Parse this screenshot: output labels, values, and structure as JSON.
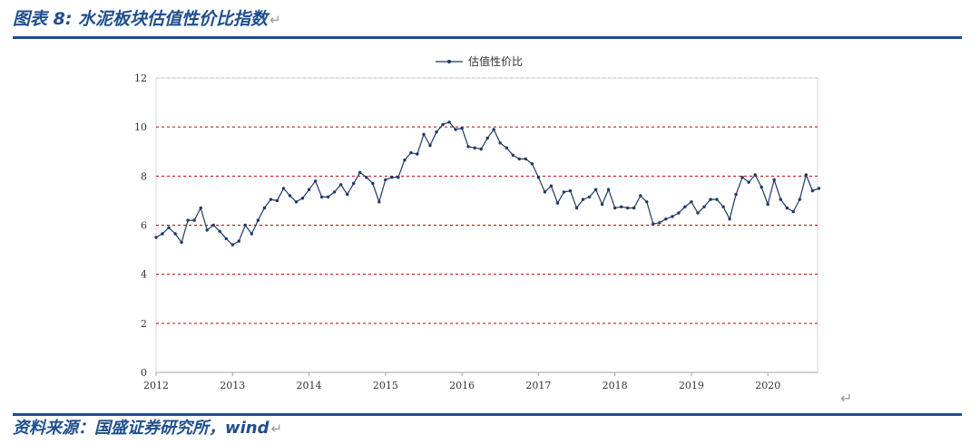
{
  "figure": {
    "title": "图表 8:  水泥板块估值性价比指数",
    "source": "资料来源：国盛证券研究所，wind",
    "return_mark": "↵"
  },
  "colors": {
    "accent": "#1f4e8c",
    "series": "#1f3864",
    "gridline": "#cc0000",
    "axis": "#a6a6a6"
  },
  "chart_data": {
    "type": "line",
    "title": "",
    "xlabel": "",
    "ylabel": "",
    "ylim": [
      0,
      12
    ],
    "yticks": [
      0,
      2,
      4,
      6,
      8,
      10,
      12
    ],
    "xlim": [
      2012,
      2020.65
    ],
    "xticks": [
      "2012",
      "2013",
      "2014",
      "2015",
      "2016",
      "2017",
      "2018",
      "2019",
      "2020"
    ],
    "grid": "horizontal-dashed",
    "legend": "top-center",
    "series": [
      {
        "name": "估值性价比",
        "start": "2012-01",
        "frequency": "monthly",
        "values": [
          5.5,
          5.65,
          5.9,
          5.65,
          5.3,
          6.2,
          6.2,
          6.7,
          5.8,
          6.0,
          5.75,
          5.45,
          5.2,
          5.35,
          6.0,
          5.65,
          6.2,
          6.7,
          7.05,
          7.0,
          7.5,
          7.2,
          6.95,
          7.1,
          7.45,
          7.8,
          7.15,
          7.15,
          7.35,
          7.65,
          7.25,
          7.7,
          8.15,
          7.95,
          7.7,
          6.95,
          7.85,
          7.95,
          7.95,
          8.65,
          8.95,
          8.9,
          9.7,
          9.25,
          9.8,
          10.1,
          10.2,
          9.9,
          9.95,
          9.2,
          9.15,
          9.1,
          9.55,
          9.9,
          9.35,
          9.15,
          8.85,
          8.7,
          8.7,
          8.5,
          7.95,
          7.35,
          7.6,
          6.9,
          7.35,
          7.4,
          6.7,
          7.05,
          7.15,
          7.45,
          6.85,
          7.45,
          6.7,
          6.75,
          6.7,
          6.7,
          7.2,
          6.95,
          6.05,
          6.1,
          6.25,
          6.35,
          6.5,
          6.75,
          6.95,
          6.5,
          6.75,
          7.05,
          7.05,
          6.75,
          6.25,
          7.25,
          7.95,
          7.75,
          8.05,
          7.55,
          6.85,
          7.85,
          7.05,
          6.7,
          6.55,
          7.05,
          8.05,
          7.4,
          7.5
        ]
      }
    ]
  }
}
